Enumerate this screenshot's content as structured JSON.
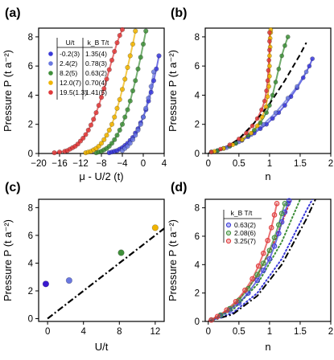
{
  "chart_data": [
    {
      "panel": "(a)",
      "type": "scatter",
      "xlabel": "μ - U/2 (t)",
      "ylabel": "Pressure P (t a⁻²)",
      "xlim": [
        -20,
        4
      ],
      "ylim": [
        0,
        8.6
      ],
      "xticks": [
        -20,
        -16,
        -12,
        -8,
        -4,
        0,
        4
      ],
      "yticks": [
        0,
        2,
        4,
        6,
        8
      ],
      "legend": {
        "placement": "top-left",
        "headers": [
          "U/t",
          "k_B T/t"
        ],
        "rows": [
          {
            "u": "-0.2(3)",
            "t": "1.35(4)",
            "color": "#3a3ad9"
          },
          {
            "u": "2.4(2)",
            "t": "0.78(3)",
            "color": "#6a78e0"
          },
          {
            "u": "8.2(5)",
            "t": "0.63(2)",
            "color": "#3f8f3a"
          },
          {
            "u": "12.0(7)",
            "t": "0.70(4)",
            "color": "#f0b400"
          },
          {
            "u": "19.5(1.3)",
            "t": "1.41(5)",
            "color": "#e0393a"
          }
        ]
      },
      "series": [
        {
          "name": "U/t = -0.2(3)",
          "color": "#3a3ad9",
          "x": [
            -6.5,
            -6,
            -5.5,
            -5,
            -4.5,
            -4,
            -3.5,
            -3,
            -2.5,
            -2,
            -1.5,
            -1,
            -0.5,
            0,
            0.5,
            1,
            1.5,
            2,
            2.5,
            3
          ],
          "y": [
            0.05,
            0.1,
            0.15,
            0.2,
            0.3,
            0.4,
            0.55,
            0.7,
            0.9,
            1.1,
            1.4,
            1.7,
            2.1,
            2.5,
            3.0,
            3.6,
            4.2,
            5.0,
            5.8,
            6.7
          ]
        },
        {
          "name": "U/t = 2.4(2)",
          "color": "#6a78e0",
          "x": [
            -4,
            -3.5,
            -3,
            -2.5,
            -2,
            -1.5,
            -1,
            -0.5,
            0,
            0.5,
            1,
            1.5,
            2
          ],
          "y": [
            0.2,
            0.35,
            0.5,
            0.7,
            0.95,
            1.25,
            1.6,
            2.0,
            2.5,
            3.1,
            3.8,
            4.6,
            5.6
          ]
        },
        {
          "name": "U/t = 8.2(5)",
          "color": "#3f8f3a",
          "x": [
            -9,
            -8.5,
            -8,
            -7.5,
            -7,
            -6.5,
            -6,
            -5.5,
            -5,
            -4.5,
            -4,
            -3.5,
            -3,
            -2.5,
            -2,
            -1.5,
            -1,
            -0.5,
            0,
            0.5
          ],
          "y": [
            0.05,
            0.1,
            0.15,
            0.25,
            0.35,
            0.5,
            0.7,
            0.95,
            1.25,
            1.6,
            2.0,
            2.5,
            3.0,
            3.6,
            4.3,
            5.0,
            5.8,
            6.6,
            7.5,
            8.4
          ]
        },
        {
          "name": "U/t = 12.0(7)",
          "color": "#f0b400",
          "x": [
            -11,
            -10.5,
            -10,
            -9.5,
            -9,
            -8.5,
            -8,
            -7.5,
            -7,
            -6.5,
            -6,
            -5.5,
            -5,
            -4.5,
            -4,
            -3.5,
            -3,
            -2.5,
            -2,
            -1.5
          ],
          "y": [
            0.05,
            0.1,
            0.15,
            0.25,
            0.35,
            0.5,
            0.7,
            0.95,
            1.25,
            1.6,
            2.0,
            2.5,
            3.1,
            3.7,
            4.4,
            5.1,
            5.9,
            6.7,
            7.5,
            8.4
          ]
        },
        {
          "name": "U/t = 19.5(1.3)",
          "color": "#e0393a",
          "x": [
            -17,
            -16,
            -15,
            -14.5,
            -14,
            -13.5,
            -13,
            -12.5,
            -12,
            -11.5,
            -11,
            -10.5,
            -10,
            -9.5,
            -9,
            -8.5,
            -8,
            -7.5,
            -7,
            -6.5,
            -6,
            -5.5,
            -5,
            -4.5,
            -4
          ],
          "y": [
            0.05,
            0.1,
            0.15,
            0.2,
            0.3,
            0.4,
            0.5,
            0.65,
            0.85,
            1.05,
            1.3,
            1.6,
            1.95,
            2.35,
            2.8,
            3.3,
            3.85,
            4.45,
            5.1,
            5.75,
            6.4,
            7.0,
            7.6,
            8.1,
            8.5
          ]
        }
      ]
    },
    {
      "panel": "(b)",
      "type": "scatter",
      "xlabel": "n",
      "ylabel": "Pressure P (t a⁻²)",
      "xlim": [
        -0.05,
        2.0
      ],
      "ylim": [
        0,
        8.6
      ],
      "xticks": [
        0,
        0.5,
        1,
        1.5,
        2
      ],
      "yticks": [
        0,
        2,
        4,
        6,
        8
      ],
      "series": [
        {
          "name": "U/t = -0.2(3)",
          "color": "#3a3ad9",
          "x": [
            0.05,
            0.15,
            0.25,
            0.35,
            0.45,
            0.55,
            0.65,
            0.75,
            0.85,
            0.95,
            1.05,
            1.15,
            1.25,
            1.35,
            1.45,
            1.55,
            1.65,
            1.7
          ],
          "y": [
            0.1,
            0.2,
            0.35,
            0.5,
            0.7,
            0.9,
            1.15,
            1.4,
            1.7,
            2.0,
            2.4,
            2.8,
            3.3,
            3.9,
            4.5,
            5.2,
            6.0,
            6.5
          ]
        },
        {
          "name": "U/t = 2.4(2)",
          "color": "#6a78e0",
          "x": [
            0.3,
            0.5,
            0.7,
            0.9,
            1.1,
            1.3,
            1.45,
            1.6
          ],
          "y": [
            0.4,
            0.8,
            1.3,
            2.0,
            2.8,
            3.8,
            4.6,
            5.6
          ]
        },
        {
          "name": "U/t = 8.2(5)",
          "color": "#3f8f3a",
          "x": [
            0.05,
            0.15,
            0.25,
            0.35,
            0.45,
            0.55,
            0.65,
            0.75,
            0.85,
            0.95,
            1.0,
            1.05,
            1.1,
            1.15,
            1.2,
            1.25,
            1.3
          ],
          "y": [
            0.1,
            0.2,
            0.35,
            0.5,
            0.7,
            0.95,
            1.25,
            1.6,
            2.1,
            2.8,
            3.3,
            4.0,
            4.9,
            5.8,
            6.7,
            7.4,
            8.0
          ]
        },
        {
          "name": "U/t = 12.0(7)",
          "color": "#f0b400",
          "x": [
            0.1,
            0.25,
            0.4,
            0.55,
            0.7,
            0.8,
            0.88,
            0.94,
            0.97,
            0.99,
            1.0,
            1.0,
            1.0,
            1.01,
            1.01,
            1.02,
            1.02
          ],
          "y": [
            0.15,
            0.35,
            0.6,
            0.95,
            1.4,
            1.9,
            2.5,
            3.2,
            3.9,
            4.6,
            5.3,
            6.0,
            6.7,
            7.3,
            7.9,
            8.3,
            8.5
          ]
        },
        {
          "name": "U/t = 19.5(1.3)",
          "color": "#e0393a",
          "x": [
            0.05,
            0.2,
            0.35,
            0.5,
            0.62,
            0.72,
            0.8,
            0.87,
            0.92,
            0.95,
            0.97,
            0.98,
            0.99,
            1.0,
            1.0,
            1.0
          ],
          "y": [
            0.1,
            0.3,
            0.6,
            1.0,
            1.4,
            1.9,
            2.4,
            3.0,
            3.6,
            4.3,
            5.0,
            5.7,
            6.4,
            7.1,
            7.7,
            8.3
          ]
        }
      ],
      "reference_curve": {
        "style": "dashed",
        "color": "#000000",
        "x": [
          0,
          0.25,
          0.5,
          0.75,
          1.0,
          1.25,
          1.5,
          1.6
        ],
        "y": [
          0,
          0.3,
          1.0,
          2.1,
          3.4,
          5.0,
          6.8,
          7.6
        ]
      }
    },
    {
      "panel": "(c)",
      "type": "scatter",
      "xlabel": "U/t",
      "ylabel": "Pressure P (t a⁻²)",
      "xlim": [
        -1,
        13
      ],
      "ylim": [
        -0.2,
        8.6
      ],
      "xticks": [
        0,
        4,
        8,
        12
      ],
      "yticks": [
        0,
        2,
        4,
        6,
        8
      ],
      "points": [
        {
          "x": -0.2,
          "y": 2.5,
          "color": "#3a1ad0"
        },
        {
          "x": 2.4,
          "y": 2.75,
          "color": "#6a78e0"
        },
        {
          "x": 8.2,
          "y": 4.75,
          "color": "#3f8f3a"
        },
        {
          "x": 12.0,
          "y": 6.55,
          "color": "#f0b400"
        }
      ],
      "reference_line": {
        "style": "dashed",
        "color": "#000000",
        "x": [
          0,
          13
        ],
        "y": [
          0,
          6.5
        ]
      }
    },
    {
      "panel": "(d)",
      "type": "scatter",
      "xlabel": "n",
      "ylabel": "Pressure P (t a⁻²)",
      "xlim": [
        -0.05,
        2.0
      ],
      "ylim": [
        0,
        8.6
      ],
      "xticks": [
        0,
        0.5,
        1,
        1.5,
        2
      ],
      "yticks": [
        0,
        2,
        4,
        6,
        8
      ],
      "legend": {
        "placement": "top-left",
        "header": "k_B T/t",
        "rows": [
          {
            "label": "0.63(2)",
            "color": "#3a3ad9"
          },
          {
            "label": "2.08(6)",
            "color": "#3f8f3a"
          },
          {
            "label": "3.25(7)",
            "color": "#e0393a"
          }
        ]
      },
      "series": [
        {
          "name": "k_B T/t = 0.63(2)",
          "color": "#3a3ad9",
          "x": [
            0.05,
            0.2,
            0.35,
            0.5,
            0.65,
            0.8,
            0.9,
            1.0,
            1.08,
            1.15,
            1.2,
            1.25,
            1.3,
            1.32
          ],
          "y": [
            0.1,
            0.4,
            0.8,
            1.3,
            2.0,
            2.9,
            3.6,
            4.4,
            5.3,
            6.2,
            7.0,
            7.7,
            8.3,
            8.5
          ]
        },
        {
          "name": "k_B T/t = 2.08(6)",
          "color": "#3f8f3a",
          "x": [
            0.05,
            0.2,
            0.35,
            0.5,
            0.65,
            0.8,
            0.9,
            1.0,
            1.08,
            1.15,
            1.2,
            1.25
          ],
          "y": [
            0.1,
            0.45,
            0.9,
            1.5,
            2.3,
            3.3,
            4.1,
            5.0,
            5.9,
            6.8,
            7.6,
            8.3
          ]
        },
        {
          "name": "k_B T/t = 3.25(7)",
          "color": "#e0393a",
          "x": [
            0.05,
            0.15,
            0.3,
            0.45,
            0.6,
            0.72,
            0.82,
            0.9,
            0.97,
            1.03,
            1.08,
            1.12
          ],
          "y": [
            0.1,
            0.35,
            0.8,
            1.4,
            2.2,
            3.0,
            3.9,
            4.8,
            5.7,
            6.6,
            7.5,
            8.3
          ]
        }
      ],
      "dotted_curves": [
        {
          "color": "#3a3ad9",
          "x": [
            0,
            0.4,
            0.8,
            1.2,
            1.6,
            1.7
          ],
          "y": [
            0,
            0.6,
            2.0,
            4.4,
            7.8,
            8.6
          ]
        },
        {
          "color": "#3f8f3a",
          "x": [
            0,
            0.4,
            0.8,
            1.2,
            1.5
          ],
          "y": [
            0,
            0.8,
            2.6,
            5.6,
            8.6
          ]
        },
        {
          "color": "#e0393a",
          "x": [
            0,
            0.4,
            0.8,
            1.1,
            1.35
          ],
          "y": [
            0,
            1.0,
            3.2,
            5.8,
            8.6
          ]
        }
      ],
      "reference_curve": {
        "style": "dash-dot",
        "color": "#000000",
        "x": [
          0,
          0.4,
          0.8,
          1.2,
          1.6,
          1.75
        ],
        "y": [
          0,
          0.5,
          1.8,
          4.0,
          7.2,
          8.6
        ]
      }
    }
  ]
}
